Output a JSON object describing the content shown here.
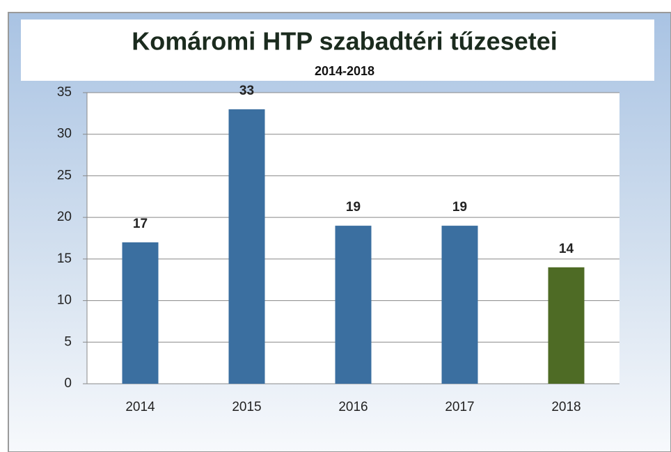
{
  "chart_data": {
    "type": "bar",
    "title": "Komáromi HTP szabadtéri tűzesetei",
    "subtitle": "2014-2018",
    "categories": [
      "2014",
      "2015",
      "2016",
      "2017",
      "2018"
    ],
    "values": [
      17,
      33,
      19,
      19,
      14
    ],
    "colors": [
      "#3b6fa0",
      "#3b6fa0",
      "#3b6fa0",
      "#3b6fa0",
      "#4e6b25"
    ],
    "ylim": [
      0,
      35
    ],
    "yticks": [
      0,
      5,
      10,
      15,
      20,
      25,
      30,
      35
    ],
    "grid": true
  }
}
